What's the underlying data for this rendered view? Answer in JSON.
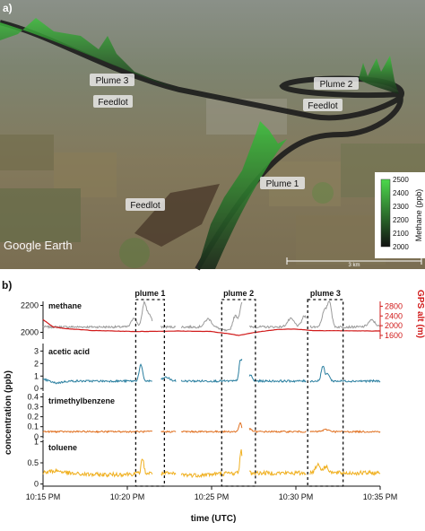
{
  "panel_a": {
    "label": "a)",
    "annotations": [
      {
        "key": "plume3",
        "text": "Plume 3"
      },
      {
        "key": "feedlot1",
        "text": "Feedlot"
      },
      {
        "key": "plume2",
        "text": "Plume 2"
      },
      {
        "key": "feedlot2",
        "text": "Feedlot"
      },
      {
        "key": "plume1",
        "text": "Plume 1"
      },
      {
        "key": "feedlot3",
        "text": "Feedlot"
      }
    ],
    "basemap_credit": "Google Earth",
    "scale_bar_text": "3 km",
    "colorbar": {
      "label": "Methane (ppb)",
      "ticks": [
        "2500",
        "2400",
        "2300",
        "2200",
        "2100",
        "2000"
      ],
      "color_low": "#111111",
      "color_high": "#4cd94c"
    }
  },
  "panel_b": {
    "label": "b)",
    "x_axis_label": "time (UTC)",
    "y_axis_label": "concentration (ppb)",
    "right_axis_label": "GPS alt (m)",
    "x_tick_labels": [
      "10:15 PM",
      "10:20 PM",
      "10:25 PM",
      "10:30 PM",
      "10:35 PM"
    ],
    "plume_labels": [
      "plume 1",
      "plume 2",
      "plume 3"
    ]
  },
  "chart_data": {
    "type": "line",
    "x_unit": "minutes after 10:15 PM UTC",
    "x_range": [
      0,
      20
    ],
    "plume_windows": [
      {
        "name": "plume 1",
        "start": 5.5,
        "end": 7.2
      },
      {
        "name": "plume 2",
        "start": 10.6,
        "end": 12.6
      },
      {
        "name": "plume 3",
        "start": 15.7,
        "end": 17.8
      }
    ],
    "gaps": [
      [
        6.5,
        7.0
      ],
      [
        7.9,
        8.2
      ],
      [
        11.8,
        12.2
      ],
      [
        15.6,
        15.8
      ]
    ],
    "panels": [
      {
        "name": "methane",
        "ylim": [
          1950,
          2230
        ],
        "yticks": [
          2000,
          2200
        ],
        "series": [
          {
            "name": "methane",
            "color": "#9a9a9a",
            "baseline": 2040,
            "noise": 8,
            "peaks": [
              [
                5.4,
                70,
                0.15
              ],
              [
                6.0,
                170,
                0.12
              ],
              [
                6.3,
                90,
                0.15
              ],
              [
                9.8,
                60,
                0.2
              ],
              [
                11.4,
                100,
                0.15
              ],
              [
                11.8,
                180,
                0.12
              ],
              [
                14.7,
                60,
                0.2
              ],
              [
                15.5,
                80,
                0.15
              ],
              [
                16.7,
                120,
                0.15
              ],
              [
                17.0,
                180,
                0.12
              ],
              [
                19.5,
                50,
                0.2
              ]
            ],
            "dips": [
              [
                11.0,
                30,
                0.4
              ]
            ]
          },
          {
            "name": "GPS alt",
            "color": "#d11a1a",
            "axis": "right",
            "ylim": [
              1450,
              3000
            ],
            "yticks": [
              1600,
              2000,
              2400,
              2800
            ],
            "points": [
              [
                0,
                2250
              ],
              [
                0.6,
                1950
              ],
              [
                1.5,
                1870
              ],
              [
                3.0,
                1800
              ],
              [
                5.5,
                1760
              ],
              [
                8.0,
                1780
              ],
              [
                10.0,
                1760
              ],
              [
                11.2,
                1650
              ],
              [
                11.6,
                1600
              ],
              [
                12.5,
                1720
              ],
              [
                14.0,
                1850
              ],
              [
                15.0,
                1860
              ],
              [
                16.0,
                1800
              ],
              [
                18.0,
                1790
              ],
              [
                20.0,
                1780
              ]
            ]
          }
        ]
      },
      {
        "name": "acetic acid",
        "ylim": [
          -0.2,
          3.6
        ],
        "yticks": [
          0,
          1,
          2,
          3
        ],
        "series": [
          {
            "name": "acetic acid",
            "color": "#2a7fa0",
            "baseline": 0.6,
            "noise": 0.08,
            "peaks": [
              [
                0.2,
                0.2,
                0.3
              ],
              [
                5.8,
                1.3,
                0.1
              ],
              [
                7.3,
                0.3,
                0.2
              ],
              [
                11.7,
                1.6,
                0.08
              ],
              [
                11.9,
                2.8,
                0.07
              ],
              [
                12.3,
                0.5,
                0.1
              ],
              [
                16.6,
                1.2,
                0.1
              ],
              [
                16.9,
                0.6,
                0.1
              ]
            ],
            "dips": [
              [
                0.6,
                0.2,
                0.4
              ]
            ]
          }
        ]
      },
      {
        "name": "trimethylbenzene",
        "ylim": [
          -0.02,
          0.44
        ],
        "yticks": [
          0,
          0.1,
          0.2,
          0.3,
          0.4
        ],
        "series": [
          {
            "name": "trimethylbenzene",
            "color": "#e07020",
            "baseline": 0.05,
            "noise": 0.008,
            "peaks": [
              [
                11.7,
                0.09,
                0.08
              ],
              [
                12.2,
                0.03,
                0.15
              ],
              [
                16.8,
                0.02,
                0.2
              ]
            ],
            "dips": []
          }
        ]
      },
      {
        "name": "toluene",
        "ylim": [
          -0.05,
          1.05
        ],
        "yticks": [
          0,
          0.5,
          1
        ],
        "series": [
          {
            "name": "toluene",
            "color": "#f0b020",
            "baseline": 0.26,
            "noise": 0.05,
            "peaks": [
              [
                0.8,
                0.06,
                0.4
              ],
              [
                5.9,
                0.35,
                0.08
              ],
              [
                11.75,
                0.55,
                0.07
              ],
              [
                12.05,
                0.45,
                0.08
              ],
              [
                16.3,
                0.2,
                0.15
              ],
              [
                16.8,
                0.15,
                0.15
              ]
            ],
            "dips": [
              [
                3.5,
                0.04,
                1.5
              ],
              [
                9.0,
                0.05,
                1.0
              ]
            ]
          }
        ]
      }
    ]
  }
}
